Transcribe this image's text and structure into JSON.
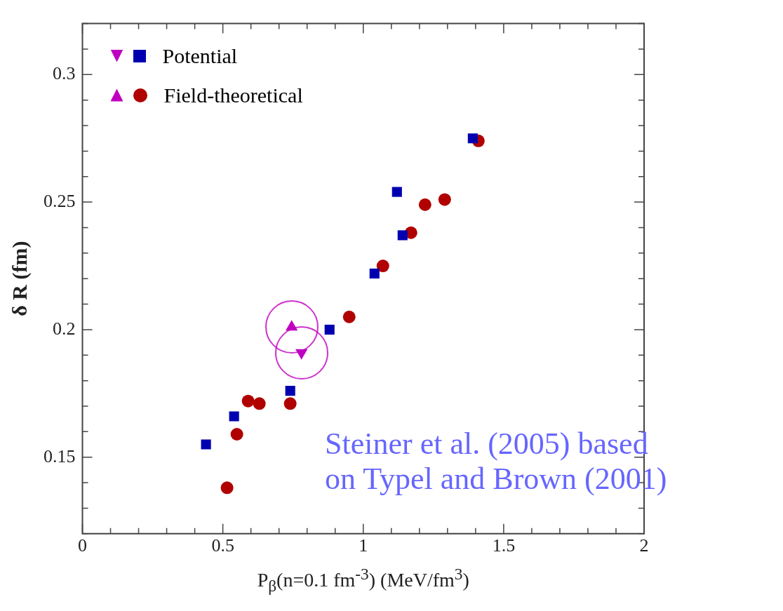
{
  "chart_data": {
    "type": "scatter",
    "xlabel": "P$_{β}$(n=0.1 fm$^{-3}$) (MeV/fm$^{3}$)",
    "ylabel": "δ R (fm)",
    "xlim": [
      0,
      2
    ],
    "xticks": [
      0,
      {
        "value": 0.1,
        "label": null
      },
      {
        "value": 0.2,
        "label": null
      },
      {
        "value": 0.3,
        "label": null
      },
      {
        "value": 0.4,
        "label": null
      },
      0.5,
      {
        "value": 0.6,
        "label": null
      },
      {
        "value": 0.7,
        "label": null
      },
      {
        "value": 0.8,
        "label": null
      },
      {
        "value": 0.9,
        "label": null
      },
      1,
      {
        "value": 1.1,
        "label": null
      },
      {
        "value": 1.2,
        "label": null
      },
      {
        "value": 1.3,
        "label": null
      },
      {
        "value": 1.4,
        "label": null
      },
      1.5,
      {
        "value": 1.6,
        "label": null
      },
      {
        "value": 1.7,
        "label": null
      },
      {
        "value": 1.8,
        "label": null
      },
      {
        "value": 1.9,
        "label": null
      },
      2
    ],
    "ylim": [
      0.12,
      0.32
    ],
    "yticks": [
      {
        "value": 0.12,
        "label": null
      },
      {
        "value": 0.13,
        "label": null
      },
      {
        "value": 0.14,
        "label": null
      },
      0.15,
      {
        "value": 0.16,
        "label": null
      },
      {
        "value": 0.17,
        "label": null
      },
      {
        "value": 0.18,
        "label": null
      },
      {
        "value": 0.19,
        "label": null
      },
      0.2,
      {
        "value": 0.21,
        "label": null
      },
      {
        "value": 0.22,
        "label": null
      },
      {
        "value": 0.23,
        "label": null
      },
      {
        "value": 0.24,
        "label": null
      },
      0.25,
      {
        "value": 0.26,
        "label": null
      },
      {
        "value": 0.27,
        "label": null
      },
      {
        "value": 0.28,
        "label": null
      },
      {
        "value": 0.29,
        "label": null
      },
      0.3,
      {
        "value": 0.31,
        "label": null
      },
      {
        "value": 0.32,
        "label": null
      }
    ],
    "grid": false,
    "legend": "top left",
    "annotations": [
      "Steiner et al. (2005) based\non Typel and Brown (2001)"
    ],
    "series": [
      {
        "name": "Potential",
        "color": "#0000b0",
        "marker": "square",
        "x": [
          0.44,
          0.54,
          0.74,
          0.88,
          1.04,
          1.14,
          1.12,
          1.39
        ],
        "values": [
          0.155,
          0.166,
          0.176,
          0.2,
          0.222,
          0.237,
          0.254,
          0.275
        ]
      },
      {
        "color": "#c000c0",
        "marker": "triangle-down",
        "x": [
          0.78
        ],
        "values": [
          0.191
        ]
      },
      {
        "name": "Field-theoretical",
        "color": "#b00000",
        "marker": "circle",
        "x": [
          0.515,
          0.55,
          0.59,
          0.63,
          0.74,
          0.95,
          1.07,
          1.17,
          1.22,
          1.29,
          1.41
        ],
        "values": [
          0.138,
          0.159,
          0.172,
          0.171,
          0.171,
          0.205,
          0.225,
          0.238,
          0.249,
          0.251,
          0.274
        ]
      },
      {
        "color": "#c000c0",
        "marker": "triangle",
        "x": [
          0.745
        ],
        "values": [
          0.201
        ]
      }
    ]
  }
}
